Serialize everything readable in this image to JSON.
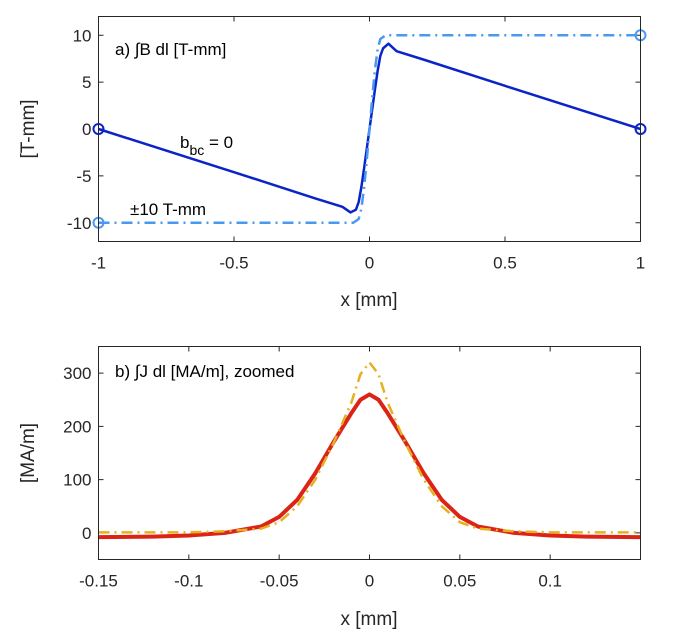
{
  "chart_data": [
    {
      "type": "line",
      "title": "a) ∫B dl [T-mm]",
      "xlabel": "x [mm]",
      "ylabel": "[T-mm]",
      "xlim": [
        -1,
        1
      ],
      "ylim": [
        -12,
        12
      ],
      "xticks": [
        -1,
        -0.5,
        0,
        0.5,
        1
      ],
      "xtick_labels": [
        "-1",
        "-0.5",
        "0",
        "0.5",
        "1"
      ],
      "yticks": [
        10,
        5,
        0,
        -5,
        -10
      ],
      "ytick_labels": [
        "10",
        "5",
        "0",
        "-5",
        "-10"
      ],
      "annotations": {
        "bbc_main": "b",
        "bbc_sub": "bc",
        "bbc_rest": " = 0",
        "pm": "±10 T-mm"
      },
      "series": [
        {
          "name": "b_bc = 0",
          "color": "#0b24c8",
          "style": "solid",
          "x": [
            -1,
            -0.5,
            -0.2,
            -0.1,
            -0.07,
            -0.05,
            -0.04,
            -0.03,
            -0.02,
            -0.01,
            0,
            0.01,
            0.02,
            0.03,
            0.04,
            0.05,
            0.07,
            0.1,
            0.2,
            0.5,
            1
          ],
          "y": [
            0,
            -4.6,
            -7.4,
            -8.3,
            -8.9,
            -8.6,
            -7.8,
            -6.2,
            -4.2,
            -2.1,
            0,
            2.1,
            4.2,
            6.2,
            7.8,
            8.6,
            9.1,
            8.3,
            7.4,
            4.6,
            0
          ],
          "markers": [
            {
              "x": -1,
              "y": 0
            },
            {
              "x": 1,
              "y": 0
            }
          ]
        },
        {
          "name": "±10 T-mm",
          "color": "#4a98f0",
          "style": "dashdot",
          "x": [
            -1,
            -0.06,
            -0.04,
            -0.03,
            -0.02,
            -0.01,
            0,
            0.01,
            0.02,
            0.03,
            0.04,
            0.06,
            1
          ],
          "y": [
            -10,
            -10,
            -9.6,
            -8.5,
            -6.3,
            -3.3,
            0,
            3.3,
            6.3,
            8.5,
            9.6,
            10,
            10
          ],
          "markers": [
            {
              "x": -1,
              "y": -10
            },
            {
              "x": 1,
              "y": 10
            }
          ]
        }
      ]
    },
    {
      "type": "line",
      "title": "b) ∫J dl [MA/m], zoomed",
      "xlabel": "x [mm]",
      "ylabel": "[MA/m]",
      "xlim": [
        -0.15,
        0.15
      ],
      "ylim": [
        -50,
        350
      ],
      "xticks": [
        -0.15,
        -0.1,
        -0.05,
        0,
        0.05,
        0.1
      ],
      "xtick_labels": [
        "-0.15",
        "-0.1",
        "-0.05",
        "0",
        "0.05",
        "0.1"
      ],
      "yticks": [
        300,
        200,
        100,
        0
      ],
      "ytick_labels": [
        "300",
        "200",
        "100",
        "0"
      ],
      "series": [
        {
          "name": "b_bc = 0",
          "color": "#dc2416",
          "style": "solid",
          "x": [
            -0.15,
            -0.12,
            -0.1,
            -0.08,
            -0.06,
            -0.05,
            -0.04,
            -0.03,
            -0.02,
            -0.01,
            -0.005,
            0,
            0.005,
            0.01,
            0.02,
            0.03,
            0.04,
            0.05,
            0.06,
            0.08,
            0.1,
            0.12,
            0.15
          ],
          "y": [
            -8,
            -7,
            -5,
            0,
            12,
            30,
            62,
            112,
            170,
            225,
            250,
            260,
            250,
            225,
            170,
            112,
            62,
            30,
            12,
            0,
            -5,
            -7,
            -8
          ]
        },
        {
          "name": "±10 T-mm",
          "color": "#e6b020",
          "style": "dashdot",
          "x": [
            -0.15,
            -0.1,
            -0.08,
            -0.06,
            -0.05,
            -0.04,
            -0.03,
            -0.02,
            -0.01,
            -0.005,
            0,
            0.005,
            0.01,
            0.02,
            0.03,
            0.04,
            0.05,
            0.06,
            0.08,
            0.1,
            0.15
          ],
          "y": [
            1,
            1,
            3,
            8,
            20,
            50,
            100,
            168,
            245,
            298,
            320,
            298,
            245,
            168,
            100,
            50,
            20,
            8,
            3,
            1,
            1
          ]
        }
      ]
    }
  ]
}
